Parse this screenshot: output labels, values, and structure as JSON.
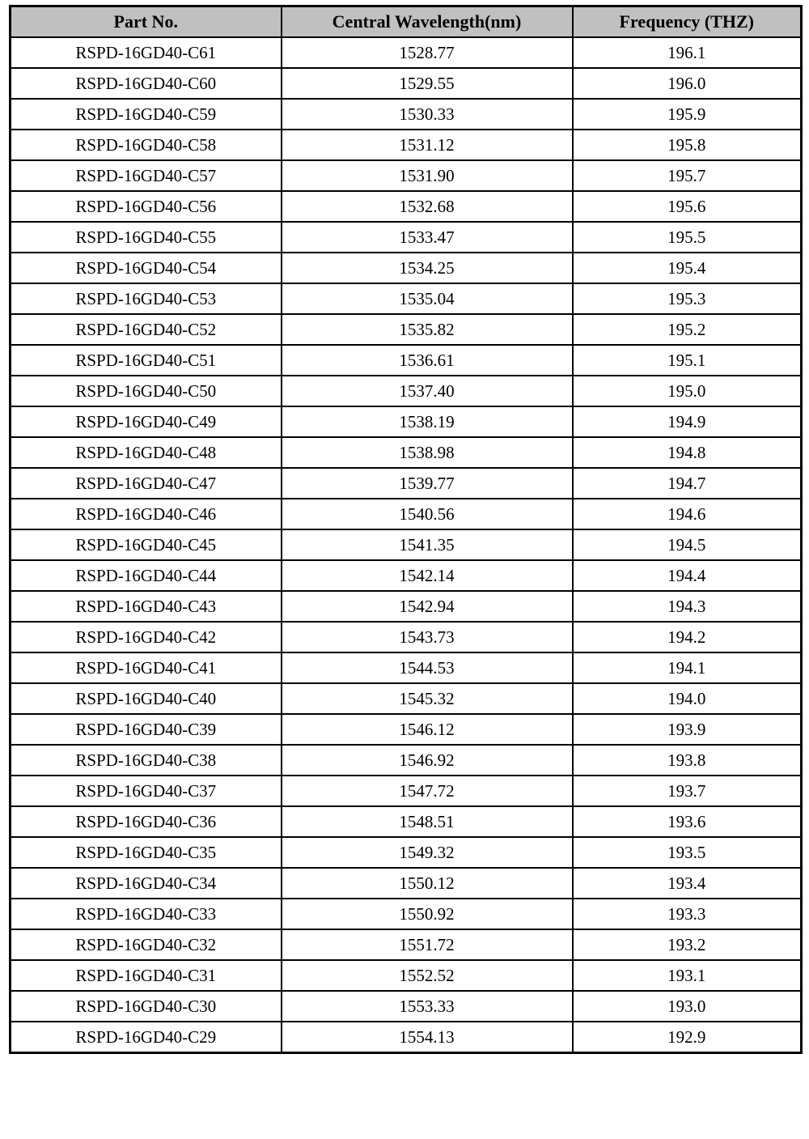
{
  "table": {
    "columns": [
      "Part No.",
      "Central Wavelength(nm)",
      "Frequency (THZ)"
    ],
    "rows": [
      [
        "RSPD-16GD40-C61",
        "1528.77",
        "196.1"
      ],
      [
        "RSPD-16GD40-C60",
        "1529.55",
        "196.0"
      ],
      [
        "RSPD-16GD40-C59",
        "1530.33",
        "195.9"
      ],
      [
        "RSPD-16GD40-C58",
        "1531.12",
        "195.8"
      ],
      [
        "RSPD-16GD40-C57",
        "1531.90",
        "195.7"
      ],
      [
        "RSPD-16GD40-C56",
        "1532.68",
        "195.6"
      ],
      [
        "RSPD-16GD40-C55",
        "1533.47",
        "195.5"
      ],
      [
        "RSPD-16GD40-C54",
        "1534.25",
        "195.4"
      ],
      [
        "RSPD-16GD40-C53",
        "1535.04",
        "195.3"
      ],
      [
        "RSPD-16GD40-C52",
        "1535.82",
        "195.2"
      ],
      [
        "RSPD-16GD40-C51",
        "1536.61",
        "195.1"
      ],
      [
        "RSPD-16GD40-C50",
        "1537.40",
        "195.0"
      ],
      [
        "RSPD-16GD40-C49",
        "1538.19",
        "194.9"
      ],
      [
        "RSPD-16GD40-C48",
        "1538.98",
        "194.8"
      ],
      [
        "RSPD-16GD40-C47",
        "1539.77",
        "194.7"
      ],
      [
        "RSPD-16GD40-C46",
        "1540.56",
        "194.6"
      ],
      [
        "RSPD-16GD40-C45",
        "1541.35",
        "194.5"
      ],
      [
        "RSPD-16GD40-C44",
        "1542.14",
        "194.4"
      ],
      [
        "RSPD-16GD40-C43",
        "1542.94",
        "194.3"
      ],
      [
        "RSPD-16GD40-C42",
        "1543.73",
        "194.2"
      ],
      [
        "RSPD-16GD40-C41",
        "1544.53",
        "194.1"
      ],
      [
        "RSPD-16GD40-C40",
        "1545.32",
        "194.0"
      ],
      [
        "RSPD-16GD40-C39",
        "1546.12",
        "193.9"
      ],
      [
        "RSPD-16GD40-C38",
        "1546.92",
        "193.8"
      ],
      [
        "RSPD-16GD40-C37",
        "1547.72",
        "193.7"
      ],
      [
        "RSPD-16GD40-C36",
        "1548.51",
        "193.6"
      ],
      [
        "RSPD-16GD40-C35",
        "1549.32",
        "193.5"
      ],
      [
        "RSPD-16GD40-C34",
        "1550.12",
        "193.4"
      ],
      [
        "RSPD-16GD40-C33",
        "1550.92",
        "193.3"
      ],
      [
        "RSPD-16GD40-C32",
        "1551.72",
        "193.2"
      ],
      [
        "RSPD-16GD40-C31",
        "1552.52",
        "193.1"
      ],
      [
        "RSPD-16GD40-C30",
        "1553.33",
        "193.0"
      ],
      [
        "RSPD-16GD40-C29",
        "1554.13",
        "192.9"
      ]
    ],
    "header_bg": "#c0c0c0",
    "border_color": "#000000"
  }
}
